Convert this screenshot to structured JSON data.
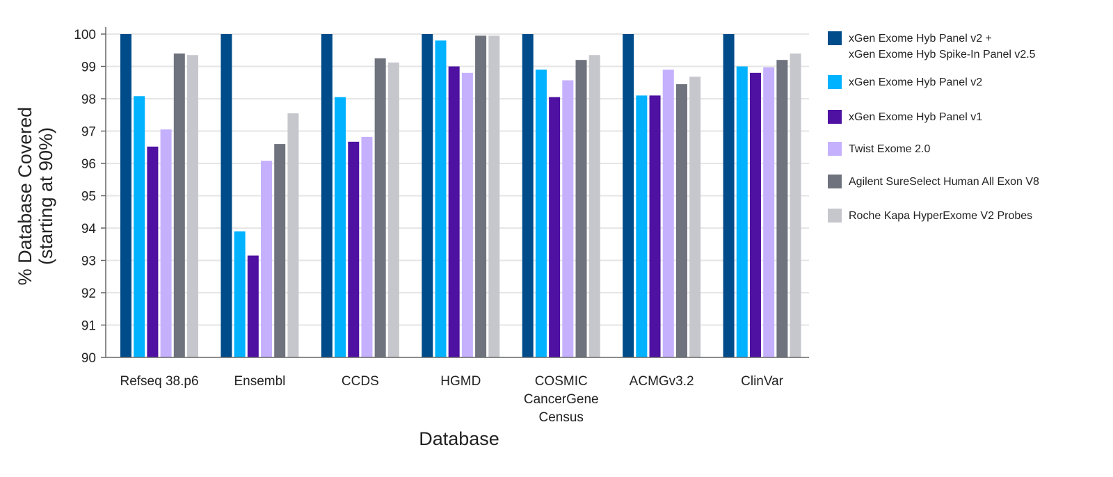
{
  "chart_data": {
    "type": "bar",
    "title": "",
    "xlabel": "Database",
    "ylabel": "% Database Covered\n(starting at 90%)",
    "ylim": [
      90,
      100
    ],
    "yticks": [
      90,
      91,
      92,
      93,
      94,
      95,
      96,
      97,
      98,
      99,
      100
    ],
    "grid": true,
    "legend_position": "right",
    "categories": [
      "Refseq 38.p6",
      "Ensembl",
      "CCDS",
      "HGMD",
      "COSMIC\nCancerGene\nCensus",
      "ACMGv3.2",
      "ClinVar"
    ],
    "series": [
      {
        "name": "xGen Exome Hyb Panel v2 +\nxGen Exome Hyb Spike-In Panel v2.5",
        "color": "#004c8a",
        "values": [
          100,
          100,
          100,
          100,
          100,
          100,
          100
        ]
      },
      {
        "name": "xGen Exome Hyb Panel v2",
        "color": "#00b2ff",
        "values": [
          98.08,
          93.9,
          98.05,
          99.8,
          98.9,
          98.1,
          99.0
        ]
      },
      {
        "name": "xGen Exome Hyb Panel v1",
        "color": "#4e11a1",
        "values": [
          96.52,
          93.15,
          96.67,
          99.0,
          98.05,
          98.1,
          98.8
        ]
      },
      {
        "name": "Twist Exome 2.0",
        "color": "#c5b0fd",
        "values": [
          97.05,
          96.08,
          96.82,
          98.8,
          98.57,
          98.9,
          98.97
        ]
      },
      {
        "name": "Agilent SureSelect Human All Exon V8",
        "color": "#6f737d",
        "values": [
          99.4,
          96.6,
          99.25,
          99.95,
          99.2,
          98.45,
          99.2
        ]
      },
      {
        "name": "Roche Kapa HyperExome V2 Probes",
        "color": "#c6c7cc",
        "values": [
          99.35,
          97.55,
          99.12,
          99.95,
          99.35,
          98.68,
          99.4
        ]
      }
    ]
  }
}
